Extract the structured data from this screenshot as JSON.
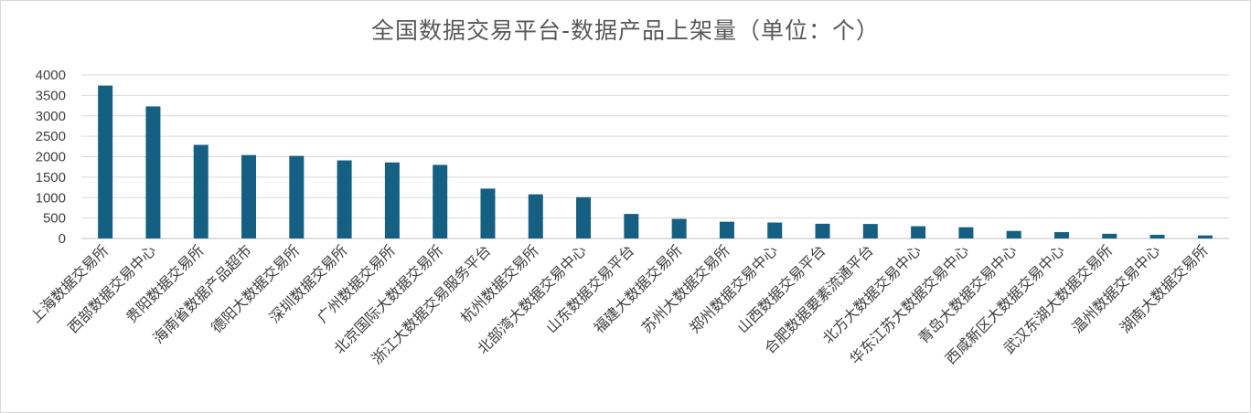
{
  "chart_data": {
    "type": "bar",
    "title": "全国数据交易平台-数据产品上架量（单位：个）",
    "xlabel": "",
    "ylabel": "",
    "ylim": [
      0,
      4000
    ],
    "yticks": [
      0,
      500,
      1000,
      1500,
      2000,
      2500,
      3000,
      3500,
      4000
    ],
    "grid": true,
    "bar_color": "#156082",
    "categories": [
      "上海数据交易所",
      "西部数据交易中心",
      "贵阳数据交易所",
      "海南省数据产品超市",
      "德阳大数据交易所",
      "深圳数据交易所",
      "广州数据交易所",
      "北京国际大数据交易所",
      "浙江大数据交易服务平台",
      "杭州数据交易所",
      "北部湾大数据交易中心",
      "山东数据交易平台",
      "福建大数据交易所",
      "苏州大数据交易所",
      "郑州数据交易中心",
      "山西数据交易平台",
      "合肥数据要素流通平台",
      "北方大数据交易中心",
      "华东江苏大数据交易中心",
      "青岛大数据交易中心",
      "西咸新区大数据交易中心",
      "武汉东湖大数据交易所",
      "温州数据交易中心",
      "湖南大数据交易所"
    ],
    "values": [
      3740,
      3230,
      2290,
      2040,
      2020,
      1910,
      1860,
      1800,
      1220,
      1080,
      1010,
      600,
      480,
      410,
      390,
      360,
      355,
      300,
      275,
      185,
      155,
      115,
      90,
      75
    ]
  }
}
